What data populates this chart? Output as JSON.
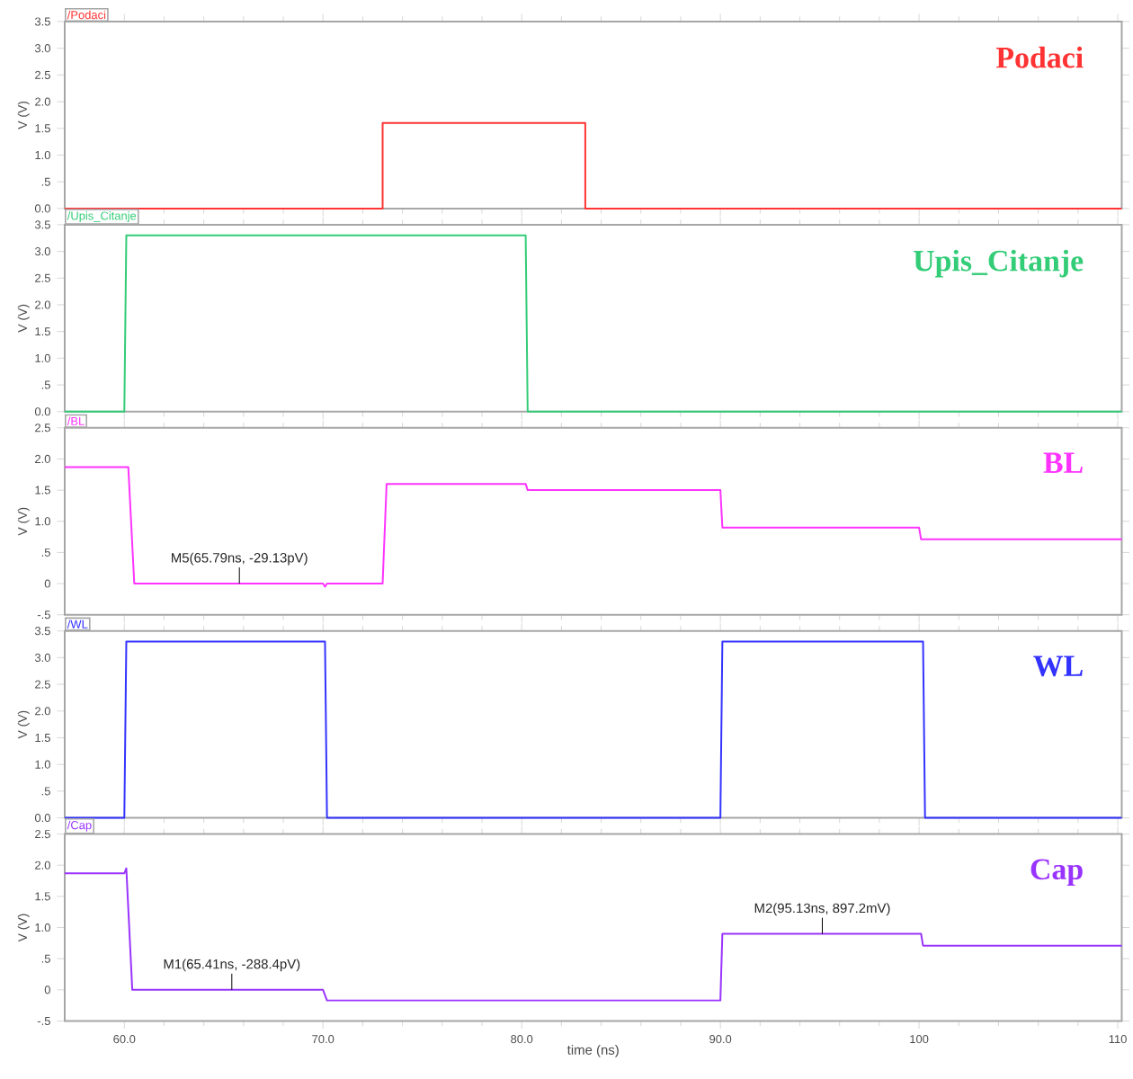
{
  "chart_data": [
    {
      "type": "line",
      "title": "Podaci",
      "ylabel": "V (V)",
      "x": [
        57,
        73,
        73,
        83.2,
        83.2,
        110.2
      ],
      "series": [
        {
          "name": "/Podaci",
          "color": "#ff3333",
          "values": [
            0,
            0,
            1.6,
            1.6,
            0,
            0
          ]
        }
      ],
      "xlim": [
        57,
        110.2
      ],
      "xticks": [
        {
          "value": 60,
          "label": null
        },
        {
          "value": 70,
          "label": null
        },
        {
          "value": 80,
          "label": null
        },
        {
          "value": 90,
          "label": null
        },
        {
          "value": 100,
          "label": null
        },
        {
          "value": 110,
          "label": null
        }
      ],
      "ylim": [
        0,
        3.5
      ],
      "yticks": [
        {
          "value": 0,
          "label": "0.0"
        },
        {
          "value": 0.5,
          "label": ".5"
        },
        {
          "value": 1,
          "label": "1.0"
        },
        1.5,
        {
          "value": 2,
          "label": "2.0"
        },
        2.5,
        {
          "value": 3,
          "label": "3.0"
        },
        3.5
      ],
      "tick_labels": "y"
    },
    {
      "type": "line",
      "title": "Upis_Citanje",
      "ylabel": "V (V)",
      "x": [
        57,
        60,
        60.1,
        80.2,
        80.3,
        110.2
      ],
      "series": [
        {
          "name": "/Upis_Citanje",
          "color": "#33cc77",
          "values": [
            0,
            0,
            3.3,
            3.3,
            0,
            0
          ]
        }
      ],
      "xlim": [
        57,
        110.2
      ],
      "xticks": [
        {
          "value": 60,
          "label": null
        },
        {
          "value": 70,
          "label": null
        },
        {
          "value": 80,
          "label": null
        },
        {
          "value": 90,
          "label": null
        },
        {
          "value": 100,
          "label": null
        },
        {
          "value": 110,
          "label": null
        }
      ],
      "ylim": [
        0,
        3.5
      ],
      "yticks": [
        {
          "value": 0,
          "label": "0.0"
        },
        {
          "value": 0.5,
          "label": ".5"
        },
        {
          "value": 1,
          "label": "1.0"
        },
        1.5,
        {
          "value": 2,
          "label": "2.0"
        },
        2.5,
        {
          "value": 3,
          "label": "3.0"
        },
        3.5
      ],
      "tick_labels": "y"
    },
    {
      "type": "line",
      "title": "BL",
      "ylabel": "V (V)",
      "x": [
        57,
        60.2,
        60.5,
        70,
        70.1,
        70.2,
        73,
        73.2,
        80.2,
        80.3,
        90,
        90.1,
        100,
        100.1,
        110.2
      ],
      "series": [
        {
          "name": "/BL",
          "color": "#ff33ff",
          "values": [
            1.87,
            1.87,
            0,
            0,
            -0.05,
            0,
            0,
            1.6,
            1.6,
            1.5,
            1.5,
            0.9,
            0.9,
            0.71,
            0.71
          ]
        }
      ],
      "xlim": [
        57,
        110.2
      ],
      "xticks": [
        {
          "value": 60,
          "label": null
        },
        {
          "value": 70,
          "label": null
        },
        {
          "value": 80,
          "label": null
        },
        {
          "value": 90,
          "label": null
        },
        {
          "value": 100,
          "label": null
        },
        {
          "value": 110,
          "label": null
        }
      ],
      "ylim": [
        -0.5,
        2.5
      ],
      "yticks": [
        {
          "value": -0.5,
          "label": "-.5"
        },
        0,
        {
          "value": 0.5,
          "label": ".5"
        },
        {
          "value": 1,
          "label": "1.0"
        },
        1.5,
        {
          "value": 2,
          "label": "2.0"
        },
        2.5
      ],
      "annotations": [
        {
          "text": "M5(65.79ns, -29.13pV)",
          "x": 65.79,
          "y": 0
        }
      ],
      "tick_labels": "y"
    },
    {
      "type": "line",
      "title": "WL",
      "ylabel": "V (V)",
      "x": [
        57,
        60,
        60.1,
        70.1,
        70.2,
        90,
        90.1,
        100.2,
        100.3,
        110.2
      ],
      "series": [
        {
          "name": "/WL",
          "color": "#3333ff",
          "values": [
            0,
            0,
            3.3,
            3.3,
            0,
            0,
            3.3,
            3.3,
            0,
            0
          ]
        }
      ],
      "xlim": [
        57,
        110.2
      ],
      "xticks": [
        {
          "value": 60,
          "label": null
        },
        {
          "value": 70,
          "label": null
        },
        {
          "value": 80,
          "label": null
        },
        {
          "value": 90,
          "label": null
        },
        {
          "value": 100,
          "label": null
        },
        {
          "value": 110,
          "label": null
        }
      ],
      "ylim": [
        0,
        3.5
      ],
      "yticks": [
        {
          "value": 0,
          "label": "0.0"
        },
        {
          "value": 0.5,
          "label": ".5"
        },
        {
          "value": 1,
          "label": "1.0"
        },
        1.5,
        {
          "value": 2,
          "label": "2.0"
        },
        2.5,
        {
          "value": 3,
          "label": "3.0"
        },
        3.5
      ],
      "tick_labels": "y"
    },
    {
      "type": "line",
      "title": "Cap",
      "ylabel": "V (V)",
      "xlabel": "time (ns)",
      "x": [
        57,
        60,
        60.1,
        60.4,
        70,
        70.2,
        90,
        90.1,
        100.1,
        100.2,
        110.2
      ],
      "series": [
        {
          "name": "/Cap",
          "color": "#9933ff",
          "values": [
            1.87,
            1.87,
            1.95,
            0,
            0,
            -0.17,
            -0.17,
            0.9,
            0.9,
            0.71,
            0.71
          ]
        }
      ],
      "xlim": [
        57,
        110.2
      ],
      "xticks": [
        {
          "value": 60,
          "label": "60.0"
        },
        {
          "value": 70,
          "label": "70.0"
        },
        {
          "value": 80,
          "label": "80.0"
        },
        {
          "value": 90,
          "label": "90.0"
        },
        100,
        110
      ],
      "ylim": [
        -0.5,
        2.5
      ],
      "yticks": [
        {
          "value": -0.5,
          "label": "-.5"
        },
        0,
        {
          "value": 0.5,
          "label": ".5"
        },
        {
          "value": 1,
          "label": "1.0"
        },
        1.5,
        {
          "value": 2,
          "label": "2.0"
        },
        2.5
      ],
      "annotations": [
        {
          "text": "M1(65.41ns, -288.4pV)",
          "x": 65.41,
          "y": 0
        },
        {
          "text": "M2(95.13ns, 897.2mV)",
          "x": 95.13,
          "y": 0.8972
        }
      ]
    }
  ]
}
